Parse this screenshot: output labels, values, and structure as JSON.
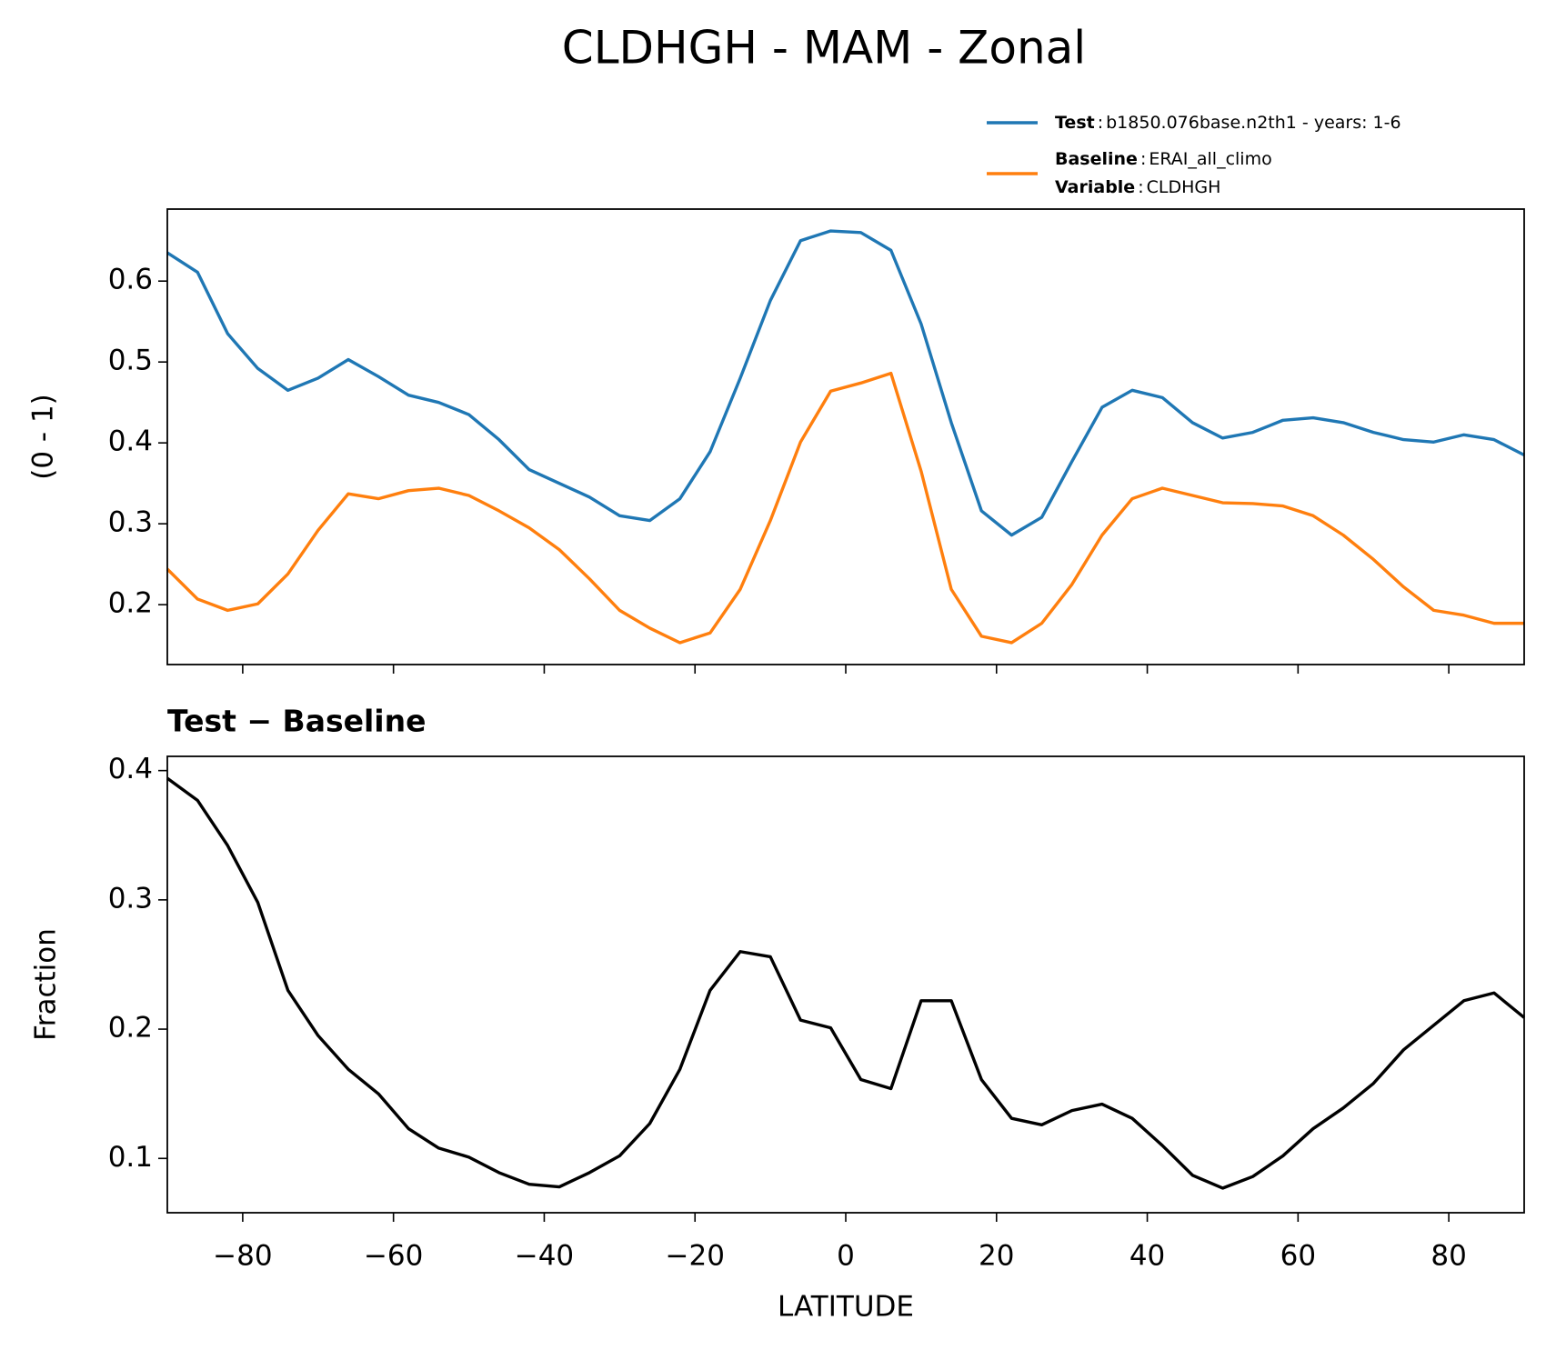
{
  "chart_data": [
    {
      "type": "line",
      "title": "CLDHGH - MAM - Zonal",
      "ylabel": "(0 - 1)",
      "x": [
        -90,
        -86,
        -82,
        -78,
        -74,
        -70,
        -66,
        -62,
        -58,
        -54,
        -50,
        -46,
        -42,
        -38,
        -34,
        -30,
        -26,
        -22,
        -18,
        -14,
        -10,
        -6,
        -2,
        2,
        6,
        10,
        14,
        18,
        22,
        26,
        30,
        34,
        38,
        42,
        46,
        50,
        54,
        58,
        62,
        66,
        70,
        74,
        78,
        82,
        86,
        90
      ],
      "series": [
        {
          "name": "Test",
          "separator": ":",
          "description": "b1850.076base.n2th1 - years: 1-6",
          "color": "#1f77b4",
          "values": [
            0.635,
            0.611,
            0.535,
            0.492,
            0.465,
            0.48,
            0.503,
            0.482,
            0.459,
            0.45,
            0.435,
            0.404,
            0.367,
            0.35,
            0.333,
            0.31,
            0.304,
            0.331,
            0.389,
            0.48,
            0.576,
            0.65,
            0.662,
            0.66,
            0.638,
            0.547,
            0.425,
            0.316,
            0.286,
            0.308,
            0.377,
            0.444,
            0.465,
            0.456,
            0.425,
            0.406,
            0.413,
            0.428,
            0.431,
            0.425,
            0.413,
            0.404,
            0.401,
            0.41,
            0.404,
            0.385
          ]
        },
        {
          "name": "Baseline",
          "separator": ":",
          "description": "ERAI_all_climo",
          "color": "#ff7f0e",
          "note_name": "Variable",
          "note_text": "CLDHGH",
          "values": [
            0.244,
            0.207,
            0.193,
            0.201,
            0.238,
            0.292,
            0.337,
            0.331,
            0.341,
            0.344,
            0.335,
            0.316,
            0.295,
            0.268,
            0.232,
            0.193,
            0.171,
            0.153,
            0.165,
            0.219,
            0.304,
            0.401,
            0.464,
            0.474,
            0.486,
            0.365,
            0.219,
            0.161,
            0.153,
            0.177,
            0.225,
            0.286,
            0.331,
            0.344,
            0.335,
            0.326,
            0.325,
            0.322,
            0.31,
            0.286,
            0.256,
            0.222,
            0.193,
            0.187,
            0.177,
            0.177
          ]
        }
      ],
      "xlim": [
        -90,
        90
      ],
      "xticks": [
        -80,
        -60,
        -40,
        -20,
        0,
        20,
        40,
        60,
        80
      ],
      "ylim": [
        0.126,
        0.689
      ],
      "yticks": [
        0.2,
        0.3,
        0.4,
        0.5,
        0.6
      ]
    },
    {
      "type": "line",
      "subtitle": "Test − Baseline",
      "ylabel": "Fraction",
      "xlabel": "LATITUDE",
      "x": [
        -90,
        -86,
        -82,
        -78,
        -74,
        -70,
        -66,
        -62,
        -58,
        -54,
        -50,
        -46,
        -42,
        -38,
        -34,
        -30,
        -26,
        -22,
        -18,
        -14,
        -10,
        -6,
        -2,
        2,
        6,
        10,
        14,
        18,
        22,
        26,
        30,
        34,
        38,
        42,
        46,
        50,
        54,
        58,
        62,
        66,
        70,
        74,
        78,
        82,
        86,
        90
      ],
      "series": [
        {
          "color": "#000000",
          "values": [
            0.394,
            0.377,
            0.342,
            0.298,
            0.23,
            0.195,
            0.169,
            0.15,
            0.123,
            0.108,
            0.101,
            0.089,
            0.08,
            0.078,
            0.089,
            0.102,
            0.127,
            0.169,
            0.23,
            0.26,
            0.256,
            0.207,
            0.201,
            0.161,
            0.154,
            0.222,
            0.222,
            0.161,
            0.131,
            0.126,
            0.137,
            0.142,
            0.131,
            0.11,
            0.087,
            0.077,
            0.086,
            0.102,
            0.123,
            0.139,
            0.158,
            0.184,
            0.203,
            0.222,
            0.228,
            0.209
          ]
        }
      ],
      "xlim": [
        -90,
        90
      ],
      "xticks": [
        {
          "value": -80,
          "label": "−80"
        },
        {
          "value": -60,
          "label": "−60"
        },
        {
          "value": -40,
          "label": "−40"
        },
        {
          "value": -20,
          "label": "−20"
        },
        0,
        20,
        40,
        60,
        80
      ],
      "ylim": [
        0.058,
        0.411
      ],
      "yticks": [
        0.1,
        0.2,
        0.3,
        0.4
      ]
    }
  ]
}
